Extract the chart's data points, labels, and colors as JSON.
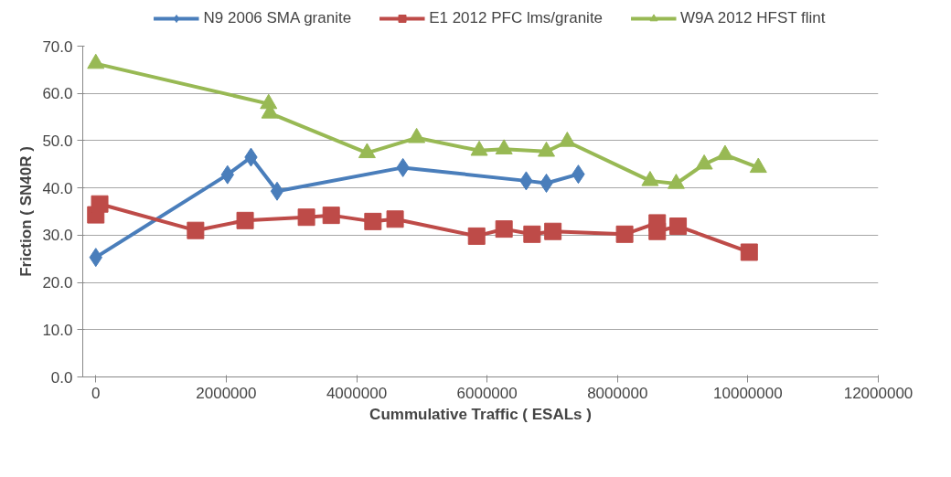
{
  "chart_data": {
    "type": "line",
    "xlabel": "Cummulative Traffic ( ESALs )",
    "ylabel": "Friction ( SN40R )",
    "xlim": [
      -200000,
      12000000
    ],
    "xticks": [
      0,
      2000000,
      4000000,
      6000000,
      8000000,
      10000000,
      12000000
    ],
    "ylim": [
      0,
      70
    ],
    "yticks": [
      {
        "value": 0,
        "label": "0.0"
      },
      {
        "value": 10,
        "label": "10.0"
      },
      {
        "value": 20,
        "label": "20.0"
      },
      {
        "value": 30,
        "label": "30.0"
      },
      {
        "value": 40,
        "label": "40.0"
      },
      {
        "value": 50,
        "label": "50.0"
      },
      {
        "value": 60,
        "label": "60.0"
      },
      {
        "value": 70,
        "label": "70.0"
      }
    ],
    "grid": "y",
    "legend": "top",
    "line_style": "solid",
    "series": [
      {
        "name": "N9 2006 SMA granite",
        "color": "#4a7ebb",
        "marker": "diamond",
        "x": [
          0,
          2020000,
          2380000,
          2780000,
          4710000,
          6600000,
          6910000,
          7400000
        ],
        "values": [
          25.3,
          42.8,
          46.5,
          39.3,
          44.3,
          41.5,
          41.0,
          42.9
        ]
      },
      {
        "name": "E1 2012 PFC lms/granite",
        "color": "#be4b48",
        "marker": "square",
        "x": [
          0,
          60000,
          1530000,
          2290000,
          3230000,
          3610000,
          4250000,
          4590000,
          5840000,
          6260000,
          6690000,
          7010000,
          8110000,
          8610000,
          8610000,
          8930000,
          10020000
        ],
        "values": [
          34.3,
          36.6,
          31.0,
          33.1,
          33.8,
          34.2,
          32.9,
          33.4,
          29.8,
          31.3,
          30.2,
          30.8,
          30.2,
          32.6,
          30.8,
          31.9,
          26.4
        ]
      },
      {
        "name": "W9A 2012 HFST flint",
        "color": "#98b954",
        "marker": "triangle",
        "x": [
          0,
          2650000,
          2670000,
          4160000,
          4920000,
          5880000,
          6260000,
          6910000,
          7230000,
          8500000,
          8900000,
          9330000,
          9650000,
          10160000
        ],
        "values": [
          66.3,
          57.8,
          55.8,
          47.4,
          50.6,
          47.9,
          48.2,
          47.7,
          49.8,
          41.5,
          40.9,
          45.0,
          47.0,
          44.3
        ]
      }
    ]
  }
}
